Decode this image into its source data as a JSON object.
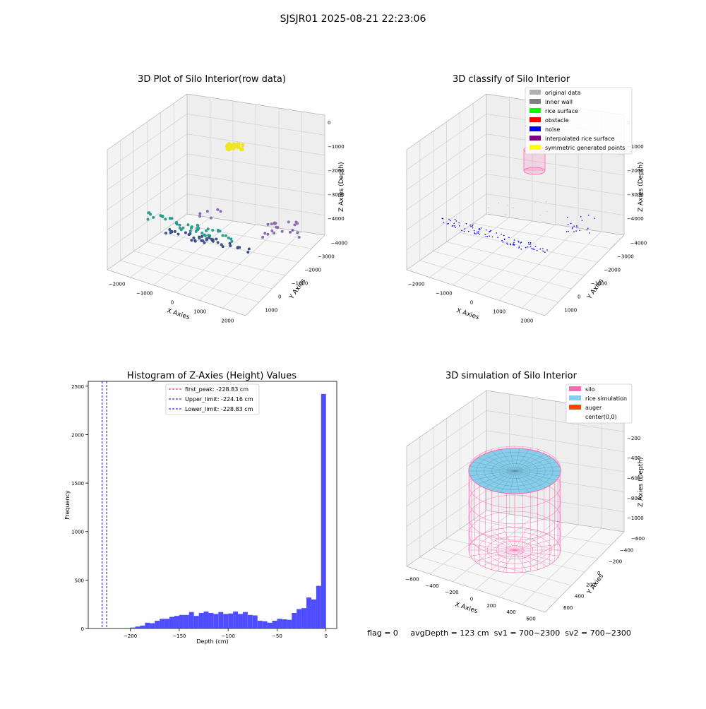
{
  "figure_title": "SJSJR01 2025-08-21 22:23:06",
  "status_line": "flag = 0     avgDepth = 123 cm  sv1 = 700~2300  sv2 = 700~2300",
  "colors": {
    "original": "#b0b0b0",
    "inner_wall": "#808080",
    "rice_surface": "#00ff00",
    "obstacle": "#ff0000",
    "noise": "#0000ff",
    "interpolated": "#800080",
    "symmetric": "#ffff00",
    "silo": "#ff69b4",
    "rice_sim": "#87ceeb",
    "auger": "#ff4500",
    "hist_bar": "#4444ff"
  },
  "chart_data": [
    {
      "type": "scatter",
      "title": "3D Plot of Silo Interior(row data)",
      "xlabel": "X Axies",
      "ylabel": "Y Axies",
      "zlabel": "Z Axies (Depth)",
      "xticks": [
        "−2000",
        "−1000",
        "0",
        "1000",
        "2000"
      ],
      "yticks": [
        "1000",
        "0",
        "−1000",
        "−2000",
        "−3000",
        "−4000"
      ],
      "zticks": [
        "0",
        "−1000",
        "−2000",
        "−3000",
        "−4000"
      ],
      "clusters": [
        "surface-near-zero",
        "wall-left-teal",
        "wall-bottom-navy",
        "wall-right-purple"
      ]
    },
    {
      "type": "scatter",
      "title": "3D classify of Silo Interior",
      "xlabel": "X Axies",
      "ylabel": "Y Axies",
      "zlabel": "Z Axies (Depth)",
      "xticks": [
        "−2000",
        "−1000",
        "0",
        "1000",
        "2000"
      ],
      "yticks": [
        "1000",
        "0",
        "−1000",
        "−2000",
        "−3000",
        "−4000"
      ],
      "zticks": [
        "0",
        "−1000",
        "−2000",
        "−3000",
        "−4000"
      ],
      "legend": [
        "original data",
        "inner wall",
        "rice surface",
        "obstacle",
        "noise",
        "interpolated rice surface",
        "symmetric generated points"
      ],
      "legend_placement": "top-right"
    },
    {
      "type": "bar",
      "title": "Histogram of Z-Axies (Height) Values",
      "xlabel": "Depth (cm)",
      "ylabel": "Frequency",
      "xlim": [
        -243,
        11
      ],
      "ylim": [
        0,
        2550
      ],
      "xticks": [
        -200,
        -150,
        -100,
        -50,
        0
      ],
      "yticks": [
        0,
        500,
        1000,
        1500,
        2000,
        2500
      ],
      "bin_width": 5,
      "bin_starts": [
        -205,
        -200,
        -195,
        -190,
        -185,
        -180,
        -175,
        -170,
        -165,
        -160,
        -155,
        -150,
        -145,
        -140,
        -135,
        -130,
        -125,
        -120,
        -115,
        -110,
        -105,
        -100,
        -95,
        -90,
        -85,
        -80,
        -75,
        -70,
        -65,
        -60,
        -55,
        -50,
        -45,
        -40,
        -35,
        -30,
        -25,
        -20,
        -15,
        -10,
        -5
      ],
      "values": [
        5,
        10,
        20,
        30,
        60,
        55,
        80,
        100,
        100,
        120,
        130,
        140,
        140,
        170,
        130,
        160,
        175,
        160,
        150,
        170,
        150,
        155,
        175,
        150,
        170,
        140,
        135,
        80,
        75,
        60,
        80,
        100,
        95,
        90,
        160,
        200,
        210,
        320,
        300,
        440,
        2420
      ],
      "vlines": [
        {
          "label": "first_peak: -228.83 cm",
          "x": -228.83,
          "color": "#ff0000"
        },
        {
          "label": "Upper_limit: -224.16 cm",
          "x": -224.16,
          "color": "#000080"
        },
        {
          "label": "Lower_limit: -228.83 cm",
          "x": -228.83,
          "color": "#0000ff"
        }
      ],
      "legend_placement": "top-center"
    },
    {
      "type": "surface",
      "title": "3D simulation of Silo Interior",
      "xlabel": "X Axies",
      "ylabel": "Y Axies",
      "zlabel": "Z Axies (Depth)",
      "xticks": [
        "−600",
        "−400",
        "−200",
        "0",
        "200",
        "400",
        "600"
      ],
      "yticks": [
        "600",
        "400",
        "200",
        "0",
        "−200",
        "−400",
        "−600"
      ],
      "zticks": [
        "0",
        "−200",
        "−400",
        "−600",
        "−800",
        "−1000"
      ],
      "legend": [
        "silo",
        "rice simulation",
        "auger",
        "center(0,0)"
      ],
      "legend_placement": "top-right"
    }
  ]
}
